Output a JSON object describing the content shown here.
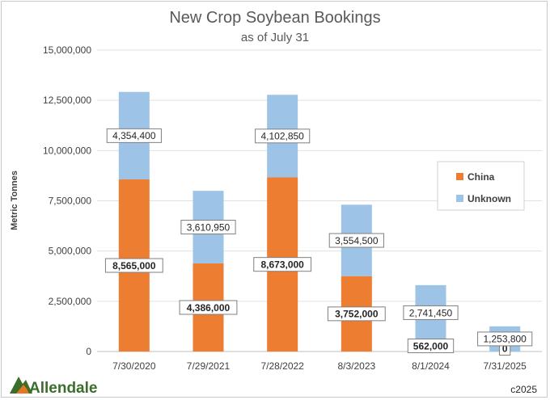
{
  "chart_data": {
    "type": "bar",
    "stacked": true,
    "title": "New Crop Soybean Bookings",
    "subtitle": "as of July 31",
    "ylabel": "Metric Tonnes",
    "xlabel": "",
    "ylim": [
      0,
      15000000
    ],
    "yticks": [
      0,
      2500000,
      5000000,
      7500000,
      10000000,
      12500000,
      15000000
    ],
    "ytick_labels": [
      "0",
      "2,500,000",
      "5,000,000",
      "7,500,000",
      "10,000,000",
      "12,500,000",
      "15,000,000"
    ],
    "categories": [
      "7/30/2020",
      "7/29/2021",
      "7/28/2022",
      "8/3/2023",
      "8/1/2024",
      "7/31/2025"
    ],
    "series": [
      {
        "name": "China",
        "color": "#ed7d31",
        "values": [
          8565000,
          4386000,
          8673000,
          3752000,
          562000,
          0
        ],
        "labels": [
          "8,565,000",
          "4,386,000",
          "8,673,000",
          "3,752,000",
          "562,000",
          "0"
        ]
      },
      {
        "name": "Unknown",
        "color": "#9dc3e6",
        "values": [
          4354400,
          3610950,
          4102850,
          3554500,
          2741450,
          1253800
        ],
        "labels": [
          "4,354,400",
          "3,610,950",
          "4,102,850",
          "3,554,500",
          "2,741,450",
          "1,253,800"
        ]
      }
    ],
    "grid": true,
    "legend_position": "right"
  },
  "footer": {
    "logo_text": "Allendale",
    "copyright": "c2025"
  }
}
